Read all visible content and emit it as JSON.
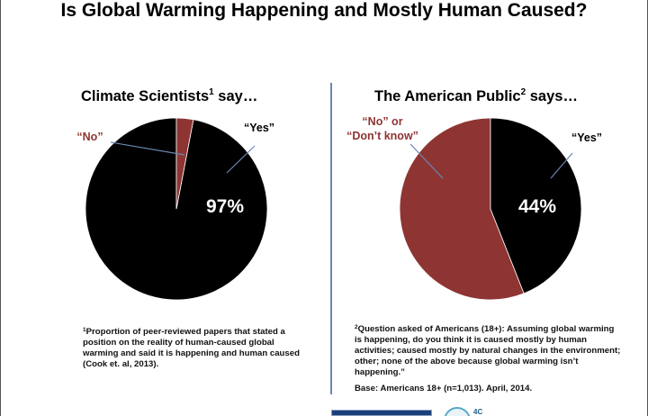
{
  "title": "Is Global Warming Happening and Mostly Human Caused?",
  "colors": {
    "yes": "#000000",
    "no": "#8e3533",
    "divider": "#6b86b5",
    "white": "#ffffff"
  },
  "chart_data": [
    {
      "type": "pie",
      "title": "Climate Scientists",
      "title_sup": "1",
      "title_tail": " say…",
      "slices": [
        {
          "label": "“Yes”",
          "value": 97
        },
        {
          "label": "“No”",
          "value": 3
        }
      ],
      "center_label": "97%",
      "footnote_sup": "1",
      "footnote_lines": [
        "Proportion of peer-reviewed papers that stated a",
        "position on the reality of human-caused global",
        "warming and said it is happening and human caused",
        "(Cook et. al, 2013)."
      ]
    },
    {
      "type": "pie",
      "title": "The American Public",
      "title_sup": "2",
      "title_tail": " says…",
      "slices": [
        {
          "label": "“Yes”",
          "value": 44
        },
        {
          "label_lines": [
            "“No” or",
            "“Don’t know”"
          ],
          "value": 56
        }
      ],
      "center_label": "44%",
      "footnote_sup": "2",
      "footnote_lines": [
        "Question asked of Americans (18+): Assuming global warming",
        "is happening, do you think it is caused mostly by human",
        "activities; caused mostly by natural changes in the environment;",
        "other; none of the above because global warming isn’t",
        "happening.”"
      ],
      "base_note": "Base: Americans 18+ (n=1,013). April, 2014."
    }
  ],
  "logo": {
    "text": "4C"
  }
}
